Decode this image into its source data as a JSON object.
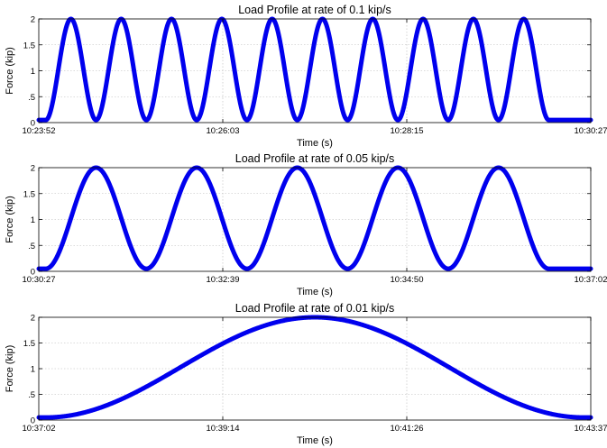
{
  "chart_data": [
    {
      "type": "line",
      "title": "Load Profile at rate of 0.1 kip/s",
      "xlabel": "Time (s)",
      "ylabel": "Force (kip)",
      "x_ticks": [
        "10:23:52",
        "10:26:03",
        "10:28:15",
        "10:30:27"
      ],
      "y_ticks": [
        "0",
        ".5",
        "1",
        "1.5",
        "2"
      ],
      "y_tick_values": [
        0,
        0.5,
        1,
        1.5,
        2
      ],
      "xlim": [
        0,
        395
      ],
      "ylim": [
        0,
        2
      ],
      "grid": true,
      "series": [
        {
          "color": "#0000ee",
          "shape": "sine",
          "cycles": 10,
          "period_s": 36,
          "start_s": 5,
          "min_force": 0.05,
          "max_force": 2.0,
          "baseline_force": 0.05
        }
      ]
    },
    {
      "type": "line",
      "title": "Load Profile at rate of 0.05 kip/s",
      "xlabel": "Time (s)",
      "ylabel": "Force (kip)",
      "x_ticks": [
        "10:30:27",
        "10:32:39",
        "10:34:50",
        "10:37:02"
      ],
      "y_ticks": [
        "0",
        ".5",
        "1",
        "1.5",
        "2"
      ],
      "y_tick_values": [
        0,
        0.5,
        1,
        1.5,
        2
      ],
      "xlim": [
        0,
        395
      ],
      "ylim": [
        0,
        2
      ],
      "grid": true,
      "series": [
        {
          "color": "#0000ee",
          "shape": "sine",
          "cycles": 5,
          "period_s": 72,
          "start_s": 5,
          "min_force": 0.05,
          "max_force": 2.0,
          "baseline_force": 0.05
        }
      ]
    },
    {
      "type": "line",
      "title": "Load Profile at rate of 0.01 kip/s",
      "xlabel": "Time (s)",
      "ylabel": "Force (kip)",
      "x_ticks": [
        "10:37:02",
        "10:39:14",
        "10:41:26",
        "10:43:37"
      ],
      "y_ticks": [
        "0",
        ".5",
        "1",
        "1.5",
        "2"
      ],
      "y_tick_values": [
        0,
        0.5,
        1,
        1.5,
        2
      ],
      "xlim": [
        0,
        395
      ],
      "ylim": [
        0,
        2
      ],
      "grid": true,
      "series": [
        {
          "color": "#0000ee",
          "shape": "sine",
          "cycles": 1,
          "period_s": 385,
          "start_s": 5,
          "min_force": 0.05,
          "max_force": 2.0,
          "baseline_force": 0.05
        }
      ]
    }
  ]
}
